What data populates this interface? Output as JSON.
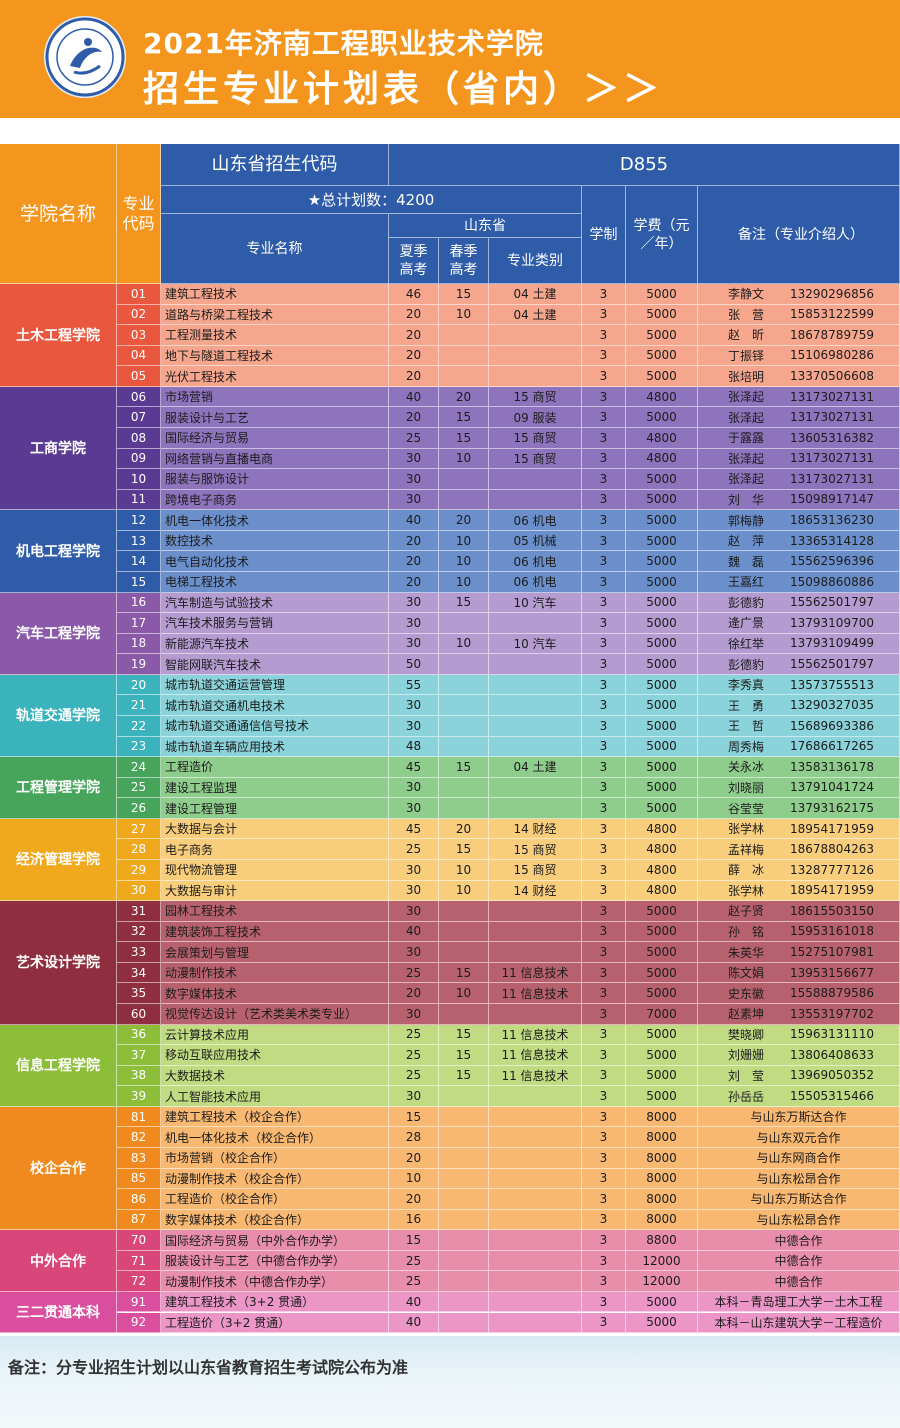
{
  "header": {
    "title_line1": "2021年济南工程职业技术学院",
    "title_line2": "招生专业计划表（省内）＞＞"
  },
  "table_header": {
    "dept_col": "学院名称",
    "code_col": "专业代码",
    "province_code_label": "山东省招生代码",
    "province_code_value": "D855",
    "total_plan": "★总计划数：4200",
    "major_name": "专业名称",
    "shandong": "山东省",
    "summer": "夏季高考",
    "spring": "春季高考",
    "category": "专业类别",
    "duration": "学制",
    "tuition": "学费（元／年）",
    "remarks": "备注（专业介绍人）"
  },
  "colors": {
    "header_orange": "#f4951e",
    "header_blue": "#2f5ca8"
  },
  "groups": [
    {
      "name": "土木工程学院",
      "code_bg": "#e9573e",
      "dept_bg": "#e9573e",
      "row_bg": "#f6a68d",
      "rows": [
        [
          "01",
          "建筑工程技术",
          "46",
          "15",
          "04 土建",
          "3",
          "5000",
          "李静文",
          "13290296856"
        ],
        [
          "02",
          "道路与桥梁工程技术",
          "20",
          "10",
          "04 土建",
          "3",
          "5000",
          "张　营",
          "15853122599"
        ],
        [
          "03",
          "工程测量技术",
          "20",
          "",
          "",
          "3",
          "5000",
          "赵　昕",
          "18678789759"
        ],
        [
          "04",
          "地下与隧道工程技术",
          "20",
          "",
          "",
          "3",
          "5000",
          "丁振铎",
          "15106980286"
        ],
        [
          "05",
          "光伏工程技术",
          "20",
          "",
          "",
          "3",
          "5000",
          "张培明",
          "13370506608"
        ]
      ]
    },
    {
      "name": "工商学院",
      "code_bg": "#5a3a93",
      "dept_bg": "#5a3a93",
      "row_bg": "#8e74bd",
      "rows": [
        [
          "06",
          "市场营销",
          "40",
          "20",
          "15 商贸",
          "3",
          "4800",
          "张泽起",
          "13173027131"
        ],
        [
          "07",
          "服装设计与工艺",
          "20",
          "15",
          "09 服装",
          "3",
          "5000",
          "张泽起",
          "13173027131"
        ],
        [
          "08",
          "国际经济与贸易",
          "25",
          "15",
          "15 商贸",
          "3",
          "4800",
          "于露露",
          "13605316382"
        ],
        [
          "09",
          "网络营销与直播电商",
          "30",
          "10",
          "15 商贸",
          "3",
          "4800",
          "张泽起",
          "13173027131"
        ],
        [
          "10",
          "服装与服饰设计",
          "30",
          "",
          "",
          "3",
          "5000",
          "张泽起",
          "13173027131"
        ],
        [
          "11",
          "跨境电子商务",
          "30",
          "",
          "",
          "3",
          "5000",
          "刘　华",
          "15098917147"
        ]
      ]
    },
    {
      "name": "机电工程学院",
      "code_bg": "#2f5ca8",
      "dept_bg": "#2f5ca8",
      "row_bg": "#6b8fcb",
      "rows": [
        [
          "12",
          "机电一体化技术",
          "40",
          "20",
          "06 机电",
          "3",
          "5000",
          "郭梅静",
          "18653136230"
        ],
        [
          "13",
          "数控技术",
          "20",
          "10",
          "05 机械",
          "3",
          "5000",
          "赵　萍",
          "13365314128"
        ],
        [
          "14",
          "电气自动化技术",
          "20",
          "10",
          "06 机电",
          "3",
          "5000",
          "魏　磊",
          "15562596396"
        ],
        [
          "15",
          "电梯工程技术",
          "20",
          "10",
          "06 机电",
          "3",
          "5000",
          "王嘉红",
          "15098860886"
        ]
      ]
    },
    {
      "name": "汽车工程学院",
      "code_bg": "#8a5aa8",
      "dept_bg": "#8a5aa8",
      "row_bg": "#b49bd0",
      "rows": [
        [
          "16",
          "汽车制造与试验技术",
          "30",
          "15",
          "10 汽车",
          "3",
          "5000",
          "彭德豹",
          "15562501797"
        ],
        [
          "17",
          "汽车技术服务与营销",
          "30",
          "",
          "",
          "3",
          "5000",
          "逄广景",
          "13793109700"
        ],
        [
          "18",
          "新能源汽车技术",
          "30",
          "10",
          "10 汽车",
          "3",
          "5000",
          "徐红举",
          "13793109499"
        ],
        [
          "19",
          "智能网联汽车技术",
          "50",
          "",
          "",
          "3",
          "5000",
          "彭德豹",
          "15562501797"
        ]
      ]
    },
    {
      "name": "轨道交通学院",
      "code_bg": "#3bb3bd",
      "dept_bg": "#3bb3bd",
      "row_bg": "#8ad3da",
      "rows": [
        [
          "20",
          "城市轨道交通运营管理",
          "55",
          "",
          "",
          "3",
          "5000",
          "李秀真",
          "13573755513"
        ],
        [
          "21",
          "城市轨道交通机电技术",
          "30",
          "",
          "",
          "3",
          "5000",
          "王　勇",
          "13290327035"
        ],
        [
          "22",
          "城市轨道交通通信信号技术",
          "30",
          "",
          "",
          "3",
          "5000",
          "王　哲",
          "15689693386"
        ],
        [
          "23",
          "城市轨道车辆应用技术",
          "48",
          "",
          "",
          "3",
          "5000",
          "周秀梅",
          "17686617265"
        ]
      ]
    },
    {
      "name": "工程管理学院",
      "code_bg": "#46a55a",
      "dept_bg": "#46a55a",
      "row_bg": "#8fcd8c",
      "rows": [
        [
          "24",
          "工程造价",
          "45",
          "15",
          "04 土建",
          "3",
          "5000",
          "关永冰",
          "13583136178"
        ],
        [
          "25",
          "建设工程监理",
          "30",
          "",
          "",
          "3",
          "5000",
          "刘晓丽",
          "13791041724"
        ],
        [
          "26",
          "建设工程管理",
          "30",
          "",
          "",
          "3",
          "5000",
          "谷莹莹",
          "13793162175"
        ]
      ]
    },
    {
      "name": "经济管理学院",
      "code_bg": "#f0a81c",
      "dept_bg": "#f0a81c",
      "row_bg": "#f8cd7c",
      "rows": [
        [
          "27",
          "大数据与会计",
          "45",
          "20",
          "14 财经",
          "3",
          "4800",
          "张学林",
          "18954171959"
        ],
        [
          "28",
          "电子商务",
          "25",
          "15",
          "15 商贸",
          "3",
          "4800",
          "孟祥梅",
          "18678804263"
        ],
        [
          "29",
          "现代物流管理",
          "30",
          "10",
          "15 商贸",
          "3",
          "4800",
          "薛　冰",
          "13287777126"
        ],
        [
          "30",
          "大数据与审计",
          "30",
          "10",
          "14 财经",
          "3",
          "4800",
          "张学林",
          "18954171959"
        ]
      ]
    },
    {
      "name": "艺术设计学院",
      "code_bg": "#8e2e3e",
      "dept_bg": "#8e2e3e",
      "row_bg": "#b8616e",
      "rows": [
        [
          "31",
          "园林工程技术",
          "30",
          "",
          "",
          "3",
          "5000",
          "赵子贤",
          "18615503150"
        ],
        [
          "32",
          "建筑装饰工程技术",
          "40",
          "",
          "",
          "3",
          "5000",
          "孙　铭",
          "15953161018"
        ],
        [
          "33",
          "会展策划与管理",
          "30",
          "",
          "",
          "3",
          "5000",
          "朱英华",
          "15275107981"
        ],
        [
          "34",
          "动漫制作技术",
          "25",
          "15",
          "11 信息技术",
          "3",
          "5000",
          "陈文娟",
          "13953156677"
        ],
        [
          "35",
          "数字媒体技术",
          "20",
          "10",
          "11 信息技术",
          "3",
          "5000",
          "史东徽",
          "15588879586"
        ],
        [
          "60",
          "视觉传达设计（艺术类美术类专业）",
          "30",
          "",
          "",
          "3",
          "7000",
          "赵素坤",
          "13553197702"
        ]
      ]
    },
    {
      "name": "信息工程学院",
      "code_bg": "#8dbe3a",
      "dept_bg": "#8dbe3a",
      "row_bg": "#c1db82",
      "rows": [
        [
          "36",
          "云计算技术应用",
          "25",
          "15",
          "11 信息技术",
          "3",
          "5000",
          "樊晓卿",
          "15963131110"
        ],
        [
          "37",
          "移动互联应用技术",
          "25",
          "15",
          "11 信息技术",
          "3",
          "5000",
          "刘姗姗",
          "13806408633"
        ],
        [
          "38",
          "大数据技术",
          "25",
          "15",
          "11 信息技术",
          "3",
          "5000",
          "刘　莹",
          "13969050352"
        ],
        [
          "39",
          "人工智能技术应用",
          "30",
          "",
          "",
          "3",
          "5000",
          "孙岳岳",
          "15505315466"
        ]
      ]
    },
    {
      "name": "校企合作",
      "code_bg": "#f08a1e",
      "dept_bg": "#f08a1e",
      "row_bg": "#f8b871",
      "rows": [
        [
          "81",
          "建筑工程技术（校企合作）",
          "15",
          "",
          "",
          "3",
          "8000",
          "与山东万斯达合作"
        ],
        [
          "82",
          "机电一体化技术（校企合作）",
          "28",
          "",
          "",
          "3",
          "8000",
          "与山东双元合作"
        ],
        [
          "83",
          "市场营销（校企合作）",
          "20",
          "",
          "",
          "3",
          "8000",
          "与山东网商合作"
        ],
        [
          "85",
          "动漫制作技术（校企合作）",
          "10",
          "",
          "",
          "3",
          "8000",
          "与山东松昂合作"
        ],
        [
          "86",
          "工程造价（校企合作）",
          "20",
          "",
          "",
          "3",
          "8000",
          "与山东万斯达合作"
        ],
        [
          "87",
          "数字媒体技术（校企合作）",
          "16",
          "",
          "",
          "3",
          "8000",
          "与山东松昂合作"
        ]
      ]
    },
    {
      "name": "中外合作",
      "code_bg": "#d9477a",
      "dept_bg": "#d9477a",
      "row_bg": "#e88eab",
      "rows": [
        [
          "70",
          "国际经济与贸易（中外合作办学）",
          "15",
          "",
          "",
          "3",
          "8800",
          "中德合作"
        ],
        [
          "71",
          "服装设计与工艺（中德合作办学）",
          "25",
          "",
          "",
          "3",
          "12000",
          "中德合作"
        ],
        [
          "72",
          "动漫制作技术（中德合作办学）",
          "25",
          "",
          "",
          "3",
          "12000",
          "中德合作"
        ]
      ]
    },
    {
      "name": "三二贯通本科",
      "code_bg": "#d94f9e",
      "dept_bg": "#d94f9e",
      "row_bg": "#eb96c7",
      "rows": [
        [
          "91",
          "建筑工程技术（3+2 贯通）",
          "40",
          "",
          "",
          "3",
          "5000",
          "本科－青岛理工大学－土木工程"
        ],
        [
          "92",
          "工程造价（3+2 贯通）",
          "40",
          "",
          "",
          "3",
          "5000",
          "本科－山东建筑大学－工程造价"
        ]
      ]
    }
  ],
  "footer": {
    "note": "备注：分专业招生计划以山东省教育招生考试院公布为准"
  }
}
